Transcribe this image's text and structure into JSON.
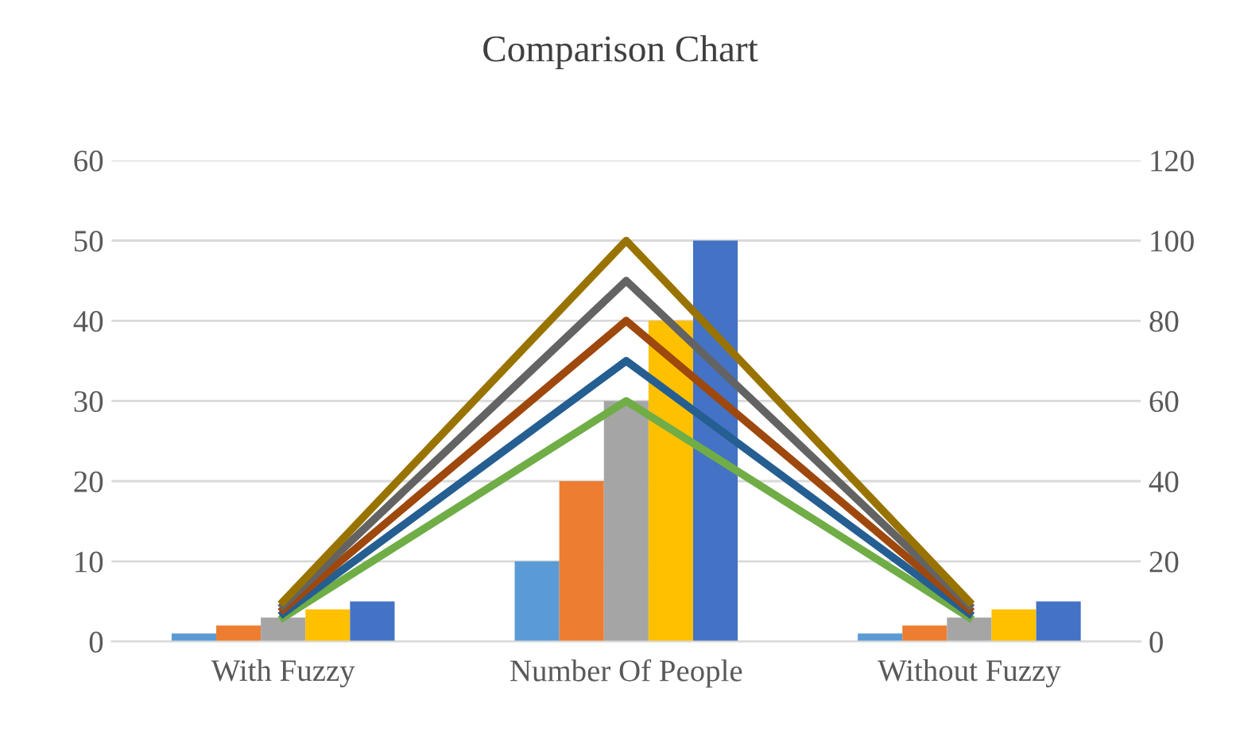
{
  "chart_data": {
    "type": "bar",
    "title": "Comparison Chart",
    "categories": [
      "With Fuzzy",
      "Number Of People",
      "Without Fuzzy"
    ],
    "series": [
      {
        "color": "#5b9bd5",
        "values": [
          1,
          10,
          1
        ]
      },
      {
        "color": "#ed7d31",
        "values": [
          2,
          20,
          2
        ]
      },
      {
        "color": "#a5a5a5",
        "values": [
          3,
          30,
          3
        ]
      },
      {
        "color": "#ffc000",
        "values": [
          4,
          40,
          4
        ]
      },
      {
        "color": "#4472c4",
        "values": [
          5,
          50,
          5
        ]
      },
      {
        "type": "line",
        "axis": "y2",
        "color": "#70ad47",
        "values": [
          6,
          60,
          6
        ]
      },
      {
        "type": "line",
        "axis": "y2",
        "color": "#255e91",
        "values": [
          7,
          70,
          7
        ]
      },
      {
        "type": "line",
        "axis": "y2",
        "color": "#9e480e",
        "values": [
          8,
          80,
          8
        ]
      },
      {
        "type": "line",
        "axis": "y2",
        "color": "#636363",
        "values": [
          9,
          90,
          9
        ]
      },
      {
        "type": "line",
        "axis": "y2",
        "color": "#997300",
        "values": [
          10,
          100,
          10
        ]
      }
    ],
    "ylim": [
      0,
      60
    ],
    "yticks": [
      0,
      10,
      20,
      30,
      40,
      50,
      60
    ],
    "y2lim": [
      0,
      120
    ],
    "y2ticks": [
      0,
      20,
      40,
      60,
      80,
      100,
      120
    ],
    "grid": "y"
  }
}
